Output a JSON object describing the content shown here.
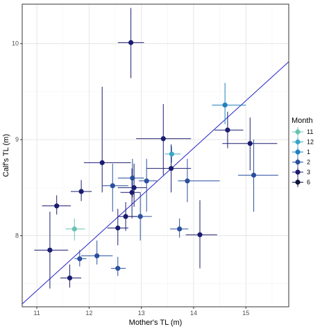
{
  "chart_data": {
    "type": "scatter",
    "title": "",
    "xlabel": "Mother's TL (m)",
    "ylabel": "Calf's TL (m)",
    "xlim": [
      10.72,
      15.82
    ],
    "ylim": [
      7.26,
      10.41
    ],
    "x_ticks": [
      "11",
      "12",
      "13",
      "14",
      "15"
    ],
    "y_ticks": [
      "8",
      "9",
      "10"
    ],
    "grid": true,
    "legend": {
      "title": "Month",
      "position": "right",
      "entries": [
        {
          "label": "11",
          "color": "#67c3b4"
        },
        {
          "label": "12",
          "color": "#3aa6c6"
        },
        {
          "label": "1",
          "color": "#1f7fbf"
        },
        {
          "label": "2",
          "color": "#2a4f9e"
        },
        {
          "label": "3",
          "color": "#1a1c6f"
        },
        {
          "label": "6",
          "color": "#0e1440"
        }
      ]
    },
    "fit_line": {
      "color": "#2323c8",
      "points": [
        [
          10.72,
          7.29
        ],
        [
          15.82,
          9.81
        ]
      ]
    },
    "points": [
      {
        "x": 12.8,
        "y": 10.01,
        "xmin": 12.55,
        "xmax": 13.05,
        "ymin": 9.64,
        "ymax": 10.37,
        "month": "3"
      },
      {
        "x": 14.6,
        "y": 9.36,
        "xmin": 14.35,
        "xmax": 15.0,
        "ymin": 9.16,
        "ymax": 9.59,
        "month": "1"
      },
      {
        "x": 14.65,
        "y": 9.1,
        "xmin": 14.4,
        "xmax": 14.95,
        "ymin": 8.91,
        "ymax": 9.29,
        "month": "3"
      },
      {
        "x": 13.42,
        "y": 9.01,
        "xmin": 12.9,
        "xmax": 13.95,
        "ymin": 8.63,
        "ymax": 9.37,
        "month": "3"
      },
      {
        "x": 15.08,
        "y": 8.96,
        "xmin": 14.55,
        "xmax": 15.6,
        "ymin": 8.68,
        "ymax": 9.23,
        "month": "3"
      },
      {
        "x": 13.58,
        "y": 8.85,
        "xmin": 13.45,
        "xmax": 13.75,
        "ymin": 8.76,
        "ymax": 8.93,
        "month": "12"
      },
      {
        "x": 12.25,
        "y": 8.76,
        "xmin": 11.9,
        "xmax": 12.8,
        "ymin": 8.45,
        "ymax": 9.55,
        "month": "3"
      },
      {
        "x": 13.57,
        "y": 8.7,
        "xmin": 13.1,
        "xmax": 13.95,
        "ymin": 8.45,
        "ymax": 8.95,
        "month": "3"
      },
      {
        "x": 15.15,
        "y": 8.63,
        "xmin": 14.85,
        "xmax": 15.62,
        "ymin": 8.25,
        "ymax": 9.0,
        "month": "2"
      },
      {
        "x": 12.83,
        "y": 8.6,
        "xmin": 12.55,
        "xmax": 13.05,
        "ymin": 8.4,
        "ymax": 8.8,
        "month": "2"
      },
      {
        "x": 13.1,
        "y": 8.57,
        "xmin": 12.95,
        "xmax": 13.3,
        "ymin": 8.25,
        "ymax": 8.8,
        "month": "2"
      },
      {
        "x": 13.88,
        "y": 8.57,
        "xmin": 13.7,
        "xmax": 14.5,
        "ymin": 8.35,
        "ymax": 8.8,
        "month": "2"
      },
      {
        "x": 12.45,
        "y": 8.52,
        "xmin": 12.25,
        "xmax": 12.75,
        "ymin": 8.25,
        "ymax": 8.75,
        "month": "2"
      },
      {
        "x": 12.86,
        "y": 8.5,
        "xmin": 12.55,
        "xmax": 13.1,
        "ymin": 8.3,
        "ymax": 8.75,
        "month": "3"
      },
      {
        "x": 11.85,
        "y": 8.46,
        "xmin": 11.65,
        "xmax": 12.05,
        "ymin": 8.36,
        "ymax": 8.58,
        "month": "3"
      },
      {
        "x": 12.82,
        "y": 8.45,
        "xmin": 12.6,
        "xmax": 12.98,
        "ymin": 8.18,
        "ymax": 8.7,
        "month": "3"
      },
      {
        "x": 11.38,
        "y": 8.31,
        "xmin": 11.1,
        "xmax": 11.65,
        "ymin": 8.22,
        "ymax": 8.42,
        "month": "3"
      },
      {
        "x": 12.98,
        "y": 8.2,
        "xmin": 12.75,
        "xmax": 13.2,
        "ymin": 7.95,
        "ymax": 8.45,
        "month": "2"
      },
      {
        "x": 12.7,
        "y": 8.2,
        "xmin": 12.55,
        "xmax": 12.92,
        "ymin": 8.05,
        "ymax": 8.35,
        "month": "3"
      },
      {
        "x": 12.55,
        "y": 8.08,
        "xmin": 12.35,
        "xmax": 12.75,
        "ymin": 7.9,
        "ymax": 8.28,
        "month": "3"
      },
      {
        "x": 13.73,
        "y": 8.07,
        "xmin": 13.55,
        "xmax": 13.9,
        "ymin": 7.98,
        "ymax": 8.18,
        "month": "2"
      },
      {
        "x": 11.72,
        "y": 8.07,
        "xmin": 11.55,
        "xmax": 11.92,
        "ymin": 7.95,
        "ymax": 8.18,
        "month": "11"
      },
      {
        "x": 14.12,
        "y": 8.01,
        "xmin": 13.85,
        "xmax": 14.45,
        "ymin": 7.66,
        "ymax": 8.37,
        "month": "3"
      },
      {
        "x": 11.25,
        "y": 7.85,
        "xmin": 10.95,
        "xmax": 11.6,
        "ymin": 7.45,
        "ymax": 8.25,
        "month": "3"
      },
      {
        "x": 12.15,
        "y": 7.79,
        "xmin": 11.85,
        "xmax": 12.45,
        "ymin": 7.7,
        "ymax": 7.95,
        "month": "2"
      },
      {
        "x": 11.82,
        "y": 7.76,
        "xmin": 11.72,
        "xmax": 11.95,
        "ymin": 7.68,
        "ymax": 7.85,
        "month": "2"
      },
      {
        "x": 12.55,
        "y": 7.66,
        "xmin": 12.42,
        "xmax": 12.7,
        "ymin": 7.58,
        "ymax": 7.78,
        "month": "2"
      },
      {
        "x": 11.63,
        "y": 7.56,
        "xmin": 11.45,
        "xmax": 11.85,
        "ymin": 7.46,
        "ymax": 7.7,
        "month": "3"
      }
    ]
  }
}
